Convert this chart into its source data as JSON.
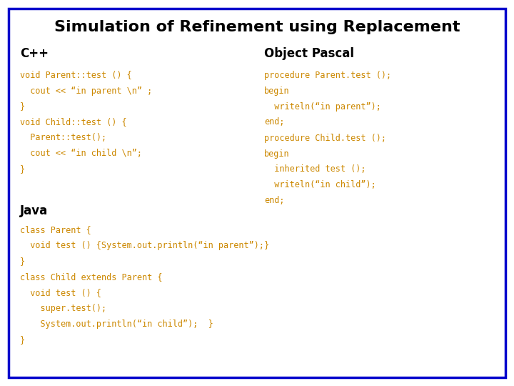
{
  "title": "Simulation of Refinement using Replacement",
  "title_fontsize": 16,
  "title_fontweight": "bold",
  "title_color": "#000000",
  "bg_color": "#ffffff",
  "border_color": "#0000cc",
  "code_color": "#cc8800",
  "label_color": "#000000",
  "label_fontsize": 12,
  "code_fontsize": 8.5,
  "cpp_label": "C++",
  "pascal_label": "Object Pascal",
  "java_label": "Java",
  "cpp_code": [
    "void Parent::test () {",
    "  cout << “in parent \\n” ;",
    "}",
    "void Child::test () {",
    "  Parent::test();",
    "  cout << “in child \\n”;",
    "}"
  ],
  "pascal_code": [
    "procedure Parent.test ();",
    "begin",
    "  writeln(“in parent”);",
    "end;",
    "procedure Child.test ();",
    "begin",
    "  inherited test ();",
    "  writeln(“in child”);",
    "end;"
  ],
  "java_code": [
    "class Parent {",
    "  void test () {System.out.println(“in parent”);}",
    "}",
    "class Child extends Parent {",
    "  void test () {",
    "    super.test();",
    "    System.out.println(“in child”);  }",
    "}"
  ]
}
